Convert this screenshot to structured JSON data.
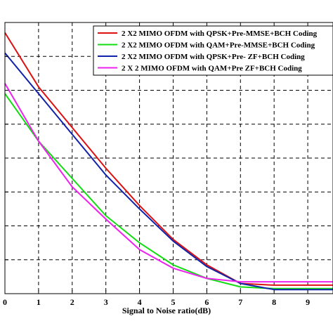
{
  "chart_data": {
    "type": "line",
    "xlabel": "Signal to Noise ratio(dB)",
    "ylabel": "",
    "xlim": [
      0,
      9.75
    ],
    "ylim": [
      0,
      8.0
    ],
    "xticks": [
      "0",
      "1",
      "2",
      "3",
      "4",
      "5",
      "6",
      "7",
      "8",
      "9"
    ],
    "yticks": [
      0,
      1,
      2,
      3,
      4,
      5,
      6,
      7,
      8
    ],
    "grid": true,
    "legend_position": "top-right",
    "series": [
      {
        "name": "2 X2 MIMO OFDM  with QPSK+Pre-MMSE+BCH Coding",
        "color": "#dd1111",
        "x": [
          0,
          1,
          2,
          3,
          4,
          5,
          6,
          7,
          8,
          9,
          9.75
        ],
        "y": [
          7.7,
          6.1,
          4.9,
          3.7,
          2.6,
          1.6,
          0.85,
          0.3,
          0.25,
          0.25,
          0.25
        ]
      },
      {
        "name": "2 X2 MIMO OFDM with QAM+Pre-MMSE+BCH Coding",
        "color": "#11dd11",
        "x": [
          0,
          1,
          2,
          3,
          4,
          5,
          6,
          7,
          8,
          9,
          9.75
        ],
        "y": [
          5.9,
          4.5,
          3.4,
          2.3,
          1.5,
          0.85,
          0.45,
          0.2,
          0.15,
          0.15,
          0.15
        ]
      },
      {
        "name": "2 X2 MIMO OFDM with QPSK+Pre- ZF+BCH Coding",
        "color": "#1122aa",
        "x": [
          0,
          1,
          2,
          3,
          4,
          5,
          6,
          7,
          8,
          9,
          9.75
        ],
        "y": [
          7.1,
          5.9,
          4.7,
          3.5,
          2.5,
          1.55,
          0.8,
          0.3,
          0.12,
          0.12,
          0.12
        ]
      },
      {
        "name": "2 X 2 MIMO OFDM with QAM+Pre ZF+BCH Coding",
        "color": "#ee22ee",
        "x": [
          0,
          1,
          2,
          3,
          4,
          5,
          6,
          7,
          8,
          9,
          9.75
        ],
        "y": [
          6.2,
          4.5,
          3.15,
          2.2,
          1.3,
          0.75,
          0.45,
          0.35,
          0.35,
          0.35,
          0.35
        ]
      }
    ]
  }
}
